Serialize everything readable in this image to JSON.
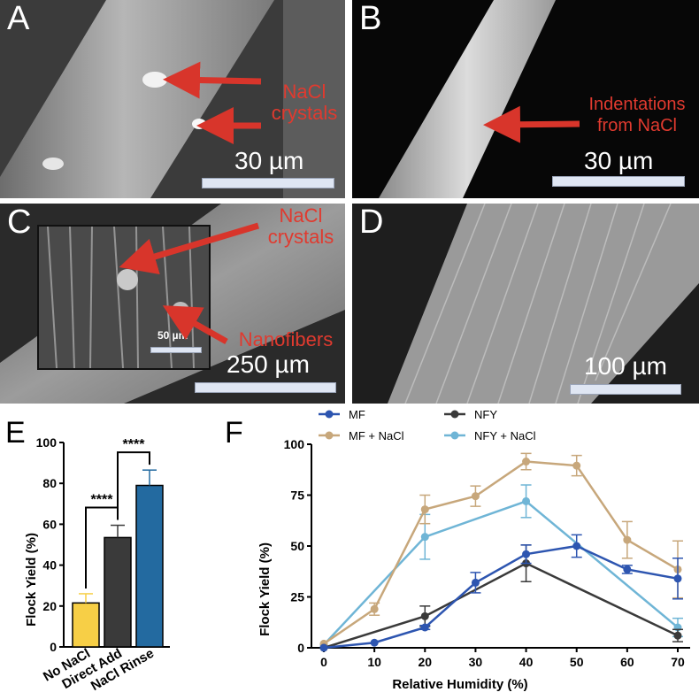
{
  "panels": {
    "A": {
      "letter": "A",
      "annotation": "NaCl\ncrystals",
      "scale": "30 µm"
    },
    "B": {
      "letter": "B",
      "annotation": "Indentations\nfrom NaCl",
      "scale": "30 µm"
    },
    "C": {
      "letter": "C",
      "annotation_top": "NaCl\ncrystals",
      "annotation_bottom": "Nanofibers",
      "scale": "250 µm",
      "inset_scale": "50 µm"
    },
    "D": {
      "letter": "D",
      "scale": "100 µm"
    },
    "E": {
      "letter": "E"
    },
    "F": {
      "letter": "F"
    }
  },
  "colors": {
    "annotation": "#e03a2f",
    "no_nacl": "#f7cf46",
    "direct_add": "#3a3a3a",
    "nacl_rinse": "#236aa0",
    "mf": "#2d55b0",
    "mf_nacl": "#c7a77b",
    "nfy": "#3a3a3a",
    "nfy_nacl": "#6fb5d6"
  },
  "chart_data": [
    {
      "type": "bar",
      "ylabel": "Flock Yield (%)",
      "ylim": [
        0,
        100
      ],
      "yticks": [
        0,
        20,
        40,
        60,
        80,
        100
      ],
      "categories": [
        "No NaCl",
        "Direct Add",
        "NaCl Rinse"
      ],
      "values": [
        21.5,
        53.5,
        79
      ],
      "errors": [
        4.5,
        6,
        7.5
      ],
      "significance": [
        {
          "from": 0,
          "to": 1,
          "label": "****"
        },
        {
          "from": 1,
          "to": 2,
          "label": "****"
        }
      ]
    },
    {
      "type": "line",
      "xlabel": "Relative Humidity (%)",
      "ylabel": "Flock Yield (%)",
      "xlim": [
        0,
        70
      ],
      "ylim": [
        0,
        100
      ],
      "xticks": [
        0,
        10,
        20,
        30,
        40,
        50,
        60,
        70
      ],
      "yticks": [
        0,
        25,
        50,
        75,
        100
      ],
      "legend": "top",
      "series": [
        {
          "name": "MF",
          "color": "#2d55b0",
          "x": [
            0,
            10,
            20,
            30,
            40,
            50,
            60,
            70
          ],
          "y": [
            0,
            2.5,
            10,
            32,
            46,
            50,
            38.5,
            34
          ],
          "err": [
            0,
            0,
            1,
            5,
            4.5,
            5.5,
            2,
            10
          ]
        },
        {
          "name": "MF + NaCl",
          "color": "#c7a77b",
          "x": [
            0,
            10,
            20,
            30,
            40,
            50,
            60,
            70
          ],
          "y": [
            2,
            19,
            68,
            74.5,
            91.5,
            89.5,
            53,
            38.5
          ],
          "err": [
            0,
            3,
            7,
            5,
            4,
            5,
            9,
            14
          ]
        },
        {
          "name": "NFY",
          "color": "#3a3a3a",
          "x": [
            0,
            20,
            40,
            70
          ],
          "y": [
            0,
            15.5,
            41.5,
            6
          ],
          "err": [
            0,
            5,
            9,
            3
          ]
        },
        {
          "name": "NFY + NaCl",
          "color": "#6fb5d6",
          "x": [
            0,
            20,
            40,
            70
          ],
          "y": [
            1.5,
            54.5,
            72,
            10
          ],
          "err": [
            0,
            11,
            8,
            4.5
          ]
        }
      ]
    }
  ]
}
